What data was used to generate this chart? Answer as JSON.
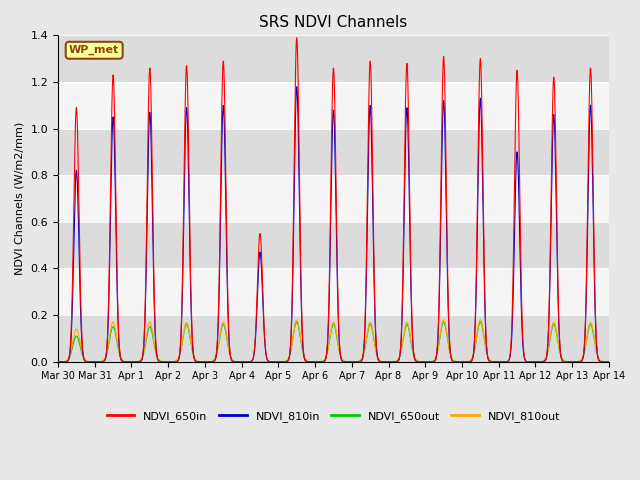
{
  "title": "SRS NDVI Channels",
  "ylabel": "NDVI Channels (W/m2/mm)",
  "ylim": [
    0.0,
    1.4
  ],
  "yticks": [
    0.0,
    0.2,
    0.4,
    0.6,
    0.8,
    1.0,
    1.2,
    1.4
  ],
  "fig_bg_color": "#e8e8e8",
  "plot_bg_color": "#f5f5f5",
  "band_colors": [
    "#dcdcdc",
    "#f5f5f5"
  ],
  "annotation_text": "WP_met",
  "annotation_bg": "#ffff99",
  "annotation_border": "#8b4513",
  "colors": {
    "NDVI_650in": "#ff0000",
    "NDVI_810in": "#0000cc",
    "NDVI_650out": "#00cc00",
    "NDVI_810out": "#ffaa00"
  },
  "x_tick_labels": [
    "Mar 30",
    "Mar 31",
    "Apr 1",
    "Apr 2",
    "Apr 3",
    "Apr 4",
    "Apr 5",
    "Apr 6",
    "Apr 7",
    "Apr 8",
    "Apr 9",
    "Apr 10",
    "Apr 11",
    "Apr 12",
    "Apr 13",
    "Apr 14"
  ],
  "num_days": 15,
  "day_peaks_650in": [
    1.09,
    1.23,
    1.26,
    1.27,
    1.29,
    0.55,
    1.39,
    1.26,
    1.29,
    1.28,
    1.31,
    1.3,
    1.25,
    1.22,
    1.26
  ],
  "day_peaks_810in": [
    0.82,
    1.05,
    1.07,
    1.09,
    1.1,
    0.47,
    1.18,
    1.08,
    1.1,
    1.09,
    1.12,
    1.13,
    0.9,
    1.06,
    1.1
  ],
  "day_peaks_650out": [
    0.11,
    0.15,
    0.15,
    0.16,
    0.16,
    0.0,
    0.17,
    0.16,
    0.16,
    0.16,
    0.17,
    0.17,
    0.0,
    0.16,
    0.16
  ],
  "day_peaks_810out": [
    0.14,
    0.17,
    0.17,
    0.17,
    0.17,
    0.0,
    0.18,
    0.17,
    0.17,
    0.17,
    0.18,
    0.18,
    0.0,
    0.17,
    0.17
  ]
}
